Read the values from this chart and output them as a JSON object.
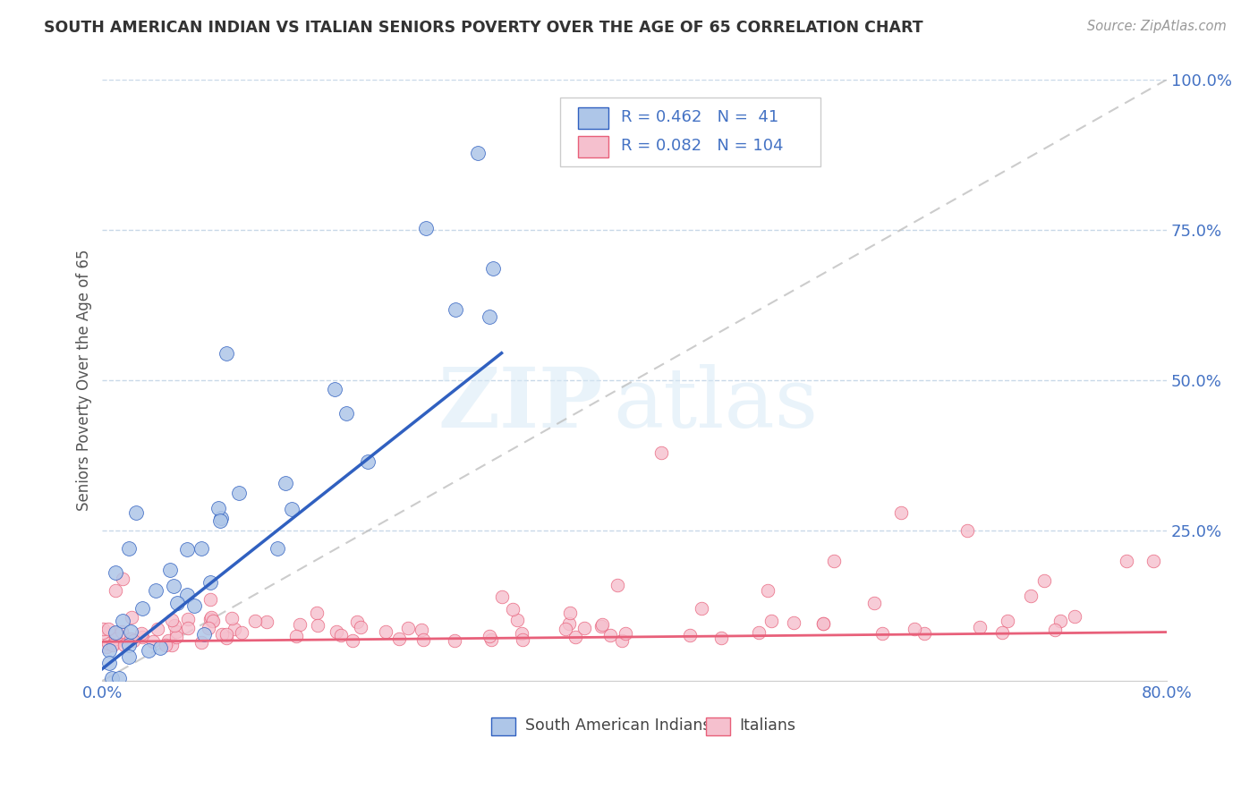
{
  "title": "SOUTH AMERICAN INDIAN VS ITALIAN SENIORS POVERTY OVER THE AGE OF 65 CORRELATION CHART",
  "source": "Source: ZipAtlas.com",
  "ylabel": "Seniors Poverty Over the Age of 65",
  "xlabel": "",
  "R_blue": 0.462,
  "N_blue": 41,
  "R_pink": 0.082,
  "N_pink": 104,
  "blue_color": "#aec6e8",
  "blue_line_color": "#3060c0",
  "pink_color": "#f5c0ce",
  "pink_line_color": "#e8607a",
  "xlim": [
    0.0,
    0.8
  ],
  "ylim": [
    0.0,
    1.0
  ],
  "xticks": [
    0.0,
    0.2,
    0.4,
    0.6,
    0.8
  ],
  "xticklabels": [
    "0.0%",
    "",
    "",
    "",
    "80.0%"
  ],
  "yticks_right": [
    0.25,
    0.5,
    0.75,
    1.0
  ],
  "yticklabels_right": [
    "25.0%",
    "50.0%",
    "75.0%",
    "100.0%"
  ],
  "watermark_zip": "ZIP",
  "watermark_atlas": "atlas",
  "background_color": "#ffffff",
  "grid_color": "#c8d8e8",
  "title_color": "#333333",
  "axis_label_color": "#555555",
  "tick_color": "#4472c4",
  "legend_label_blue": "South American Indians",
  "legend_label_pink": "Italians",
  "blue_seed": 42,
  "pink_seed": 99
}
